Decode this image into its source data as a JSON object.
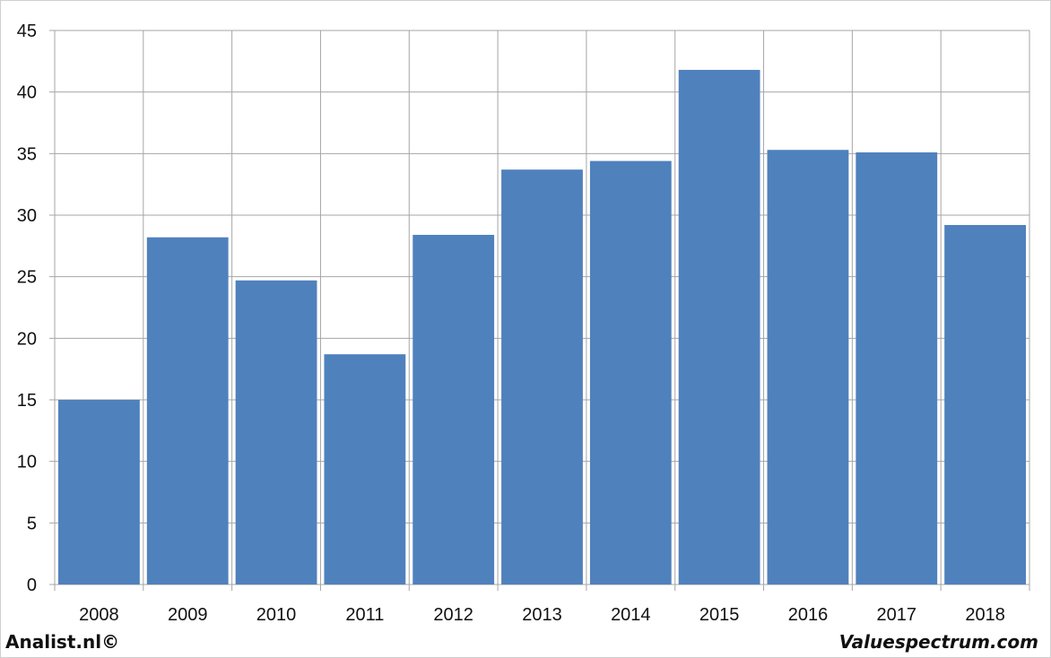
{
  "chart_data": {
    "type": "bar",
    "categories": [
      "2008",
      "2009",
      "2010",
      "2011",
      "2012",
      "2013",
      "2014",
      "2015",
      "2016",
      "2017",
      "2018"
    ],
    "values": [
      15.0,
      28.2,
      24.7,
      18.7,
      28.4,
      33.7,
      34.4,
      41.8,
      35.3,
      35.1,
      29.2
    ],
    "ylim": [
      0,
      45
    ],
    "yticks": [
      "0",
      "5",
      "10",
      "15",
      "20",
      "25",
      "30",
      "35",
      "40",
      "45"
    ],
    "grid": true,
    "bar_color": "#4f81bd",
    "grid_color": "#a6a6a6"
  },
  "footer": {
    "left": "Analist.nl©",
    "right": "Valuespectrum.com"
  }
}
